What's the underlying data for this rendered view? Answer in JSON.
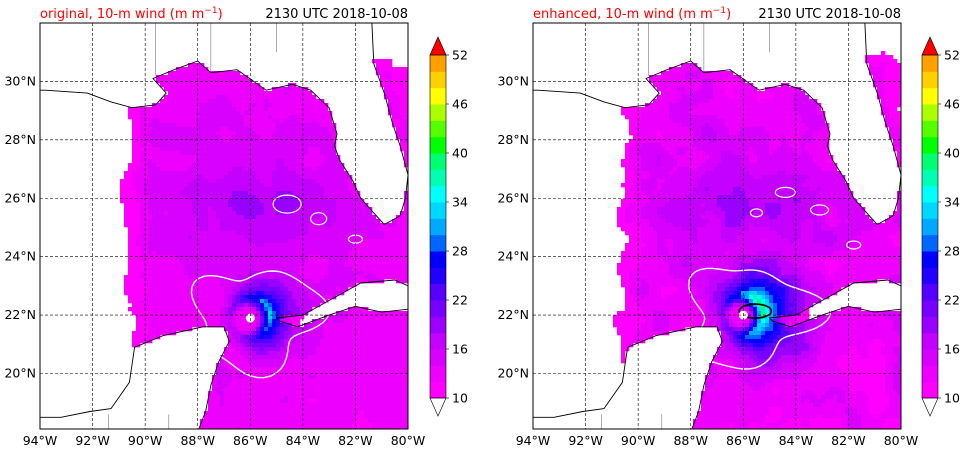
{
  "colors": {
    "title_left": "#ff0000",
    "title_right": "#000000",
    "land_outline": "#000000",
    "contour": "#ffffff",
    "contour_high": "#000000",
    "grid": "#000000"
  },
  "colorbar": {
    "ticks": [
      10,
      16,
      22,
      28,
      34,
      40,
      46,
      52
    ],
    "levels": [
      10,
      12,
      14,
      16,
      18,
      20,
      22,
      24,
      26,
      28,
      30,
      32,
      34,
      36,
      38,
      40,
      42,
      44,
      46,
      48,
      50,
      52
    ],
    "colors": [
      "#ff00ff",
      "#ee00ff",
      "#d800ff",
      "#c400ff",
      "#9900ff",
      "#7700ff",
      "#5500ff",
      "#2200ff",
      "#0000ff",
      "#0066ff",
      "#00a8ff",
      "#00d8ff",
      "#00ffff",
      "#00ffb0",
      "#00ff70",
      "#00ff00",
      "#55ff00",
      "#aaff00",
      "#ffff00",
      "#ffd000",
      "#ffa000",
      "#ff7000",
      "#ff0000"
    ],
    "extend": "both",
    "under_color": "#ffffff",
    "over_color": "#ff0000"
  },
  "chart_data": [
    {
      "type": "heatmap",
      "title_left": "original, 10-m wind (m m$^{-1}$)",
      "title_left_text": "original, 10-m wind (m m",
      "title_left_sup": "−1",
      "title_left_end": ")",
      "title_right": "2130 UTC 2018-10-08",
      "xticklabels": [
        "94°W",
        "92°W",
        "90°W",
        "88°W",
        "86°W",
        "84°W",
        "82°W",
        "80°W"
      ],
      "yticklabels": [
        "20°N",
        "22°N",
        "24°N",
        "26°N",
        "28°N",
        "30°N"
      ],
      "xlim": [
        -94,
        -80
      ],
      "ylim": [
        18.1,
        32.0
      ],
      "xticks": [
        -94,
        -92,
        -90,
        -88,
        -86,
        -84,
        -82,
        -80
      ],
      "yticks": [
        20,
        22,
        24,
        26,
        28,
        30
      ],
      "variable": "10-m wind speed",
      "cbar_range": [
        10,
        52
      ],
      "storm_center": {
        "lon": -86.0,
        "lat": 21.9
      },
      "max_wind_estimate": 30
    },
    {
      "type": "heatmap",
      "title_left": "enhanced, 10-m wind (m m$^{-1}$)",
      "title_left_text": "enhanced, 10-m wind (m m",
      "title_left_sup": "−1",
      "title_left_end": ")",
      "title_right": "2130 UTC 2018-10-08",
      "xticklabels": [
        "94°W",
        "92°W",
        "90°W",
        "88°W",
        "86°W",
        "84°W",
        "82°W",
        "80°W"
      ],
      "yticklabels": [
        "20°N",
        "22°N",
        "24°N",
        "26°N",
        "28°N",
        "30°N"
      ],
      "xlim": [
        -94,
        -80
      ],
      "ylim": [
        18.1,
        32.0
      ],
      "xticks": [
        -94,
        -92,
        -90,
        -88,
        -86,
        -84,
        -82,
        -80
      ],
      "yticks": [
        20,
        22,
        24,
        26,
        28,
        30
      ],
      "variable": "10-m wind speed",
      "cbar_range": [
        10,
        52
      ],
      "storm_center": {
        "lon": -86.0,
        "lat": 22.0
      },
      "max_wind_estimate": 36
    }
  ]
}
